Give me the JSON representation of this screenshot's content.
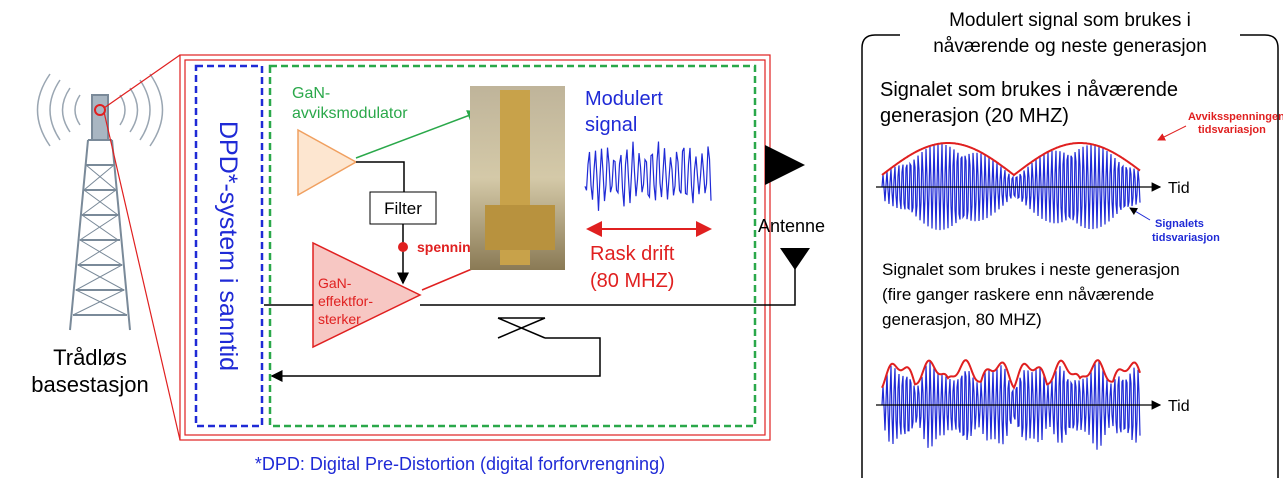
{
  "tower_label": [
    "Trådløs",
    "basestasjon"
  ],
  "dpd_label": "DPD*-system i sanntid",
  "modulator_label": [
    "GaN-",
    "avviksmodulator"
  ],
  "filter_label": "Filter",
  "voltage_label": "spenning",
  "amplifier_label": [
    "GaN-",
    "effektfor-",
    "sterker"
  ],
  "signal_label": [
    "Modulert",
    "signal"
  ],
  "drift_label": [
    "Rask drift",
    "(80 MHZ)"
  ],
  "antenna_label": "Antenne",
  "footnote": "*DPD: Digital Pre-Distortion (digital forforvrengning)",
  "panel": {
    "title": [
      "Modulert signal som brukes i",
      "nåværende og neste generasjon"
    ],
    "current": {
      "title": [
        "Signalet som brukes i nåværende",
        "generasjon (20 MHZ)"
      ],
      "envelope_label": [
        "Avviksspenningens",
        "tidsvariasjon"
      ],
      "signal_label": [
        "Signalets",
        "tidsvariasjon"
      ],
      "axis_label": "Tid"
    },
    "next": {
      "title": [
        "Signalet som brukes i neste generasjon",
        "(fire ganger raskere enn nåværende",
        "generasjon, 80 MHZ)"
      ],
      "axis_label": "Tid"
    }
  }
}
